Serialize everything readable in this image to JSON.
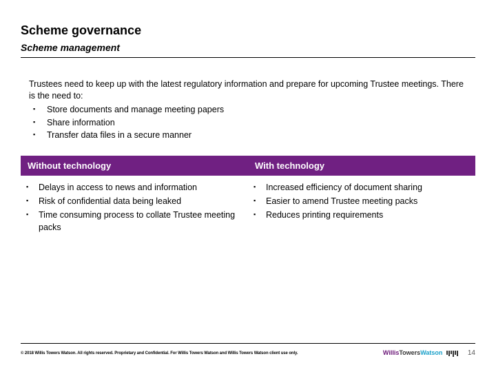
{
  "colors": {
    "header_bg": "#702082",
    "text": "#000000",
    "background": "#ffffff"
  },
  "title": "Scheme governance",
  "subtitle": "Scheme management",
  "intro": {
    "lead": "Trustees need to keep up with the latest regulatory information and prepare for upcoming Trustee meetings. There is the need to:",
    "bullets": [
      "Store documents and manage meeting papers",
      "Share information",
      "Transfer data files in a secure manner"
    ]
  },
  "columns": [
    {
      "header": "Without technology",
      "items": [
        "Delays in access to news and information",
        "Risk of confidential data being leaked",
        "Time consuming process to collate Trustee meeting packs"
      ]
    },
    {
      "header": "With technology",
      "items": [
        "Increased efficiency of document sharing",
        "Easier to amend Trustee meeting packs",
        "Reduces printing requirements"
      ]
    }
  ],
  "footer": {
    "copyright": "© 2018 Willis Towers Watson. All rights reserved. Proprietary and Confidential. For Willis Towers Watson and Willis Towers Watson client use only.",
    "logo": {
      "w1": "Willis",
      "w2": "Towers",
      "w3": "Watson"
    },
    "page": "14"
  }
}
